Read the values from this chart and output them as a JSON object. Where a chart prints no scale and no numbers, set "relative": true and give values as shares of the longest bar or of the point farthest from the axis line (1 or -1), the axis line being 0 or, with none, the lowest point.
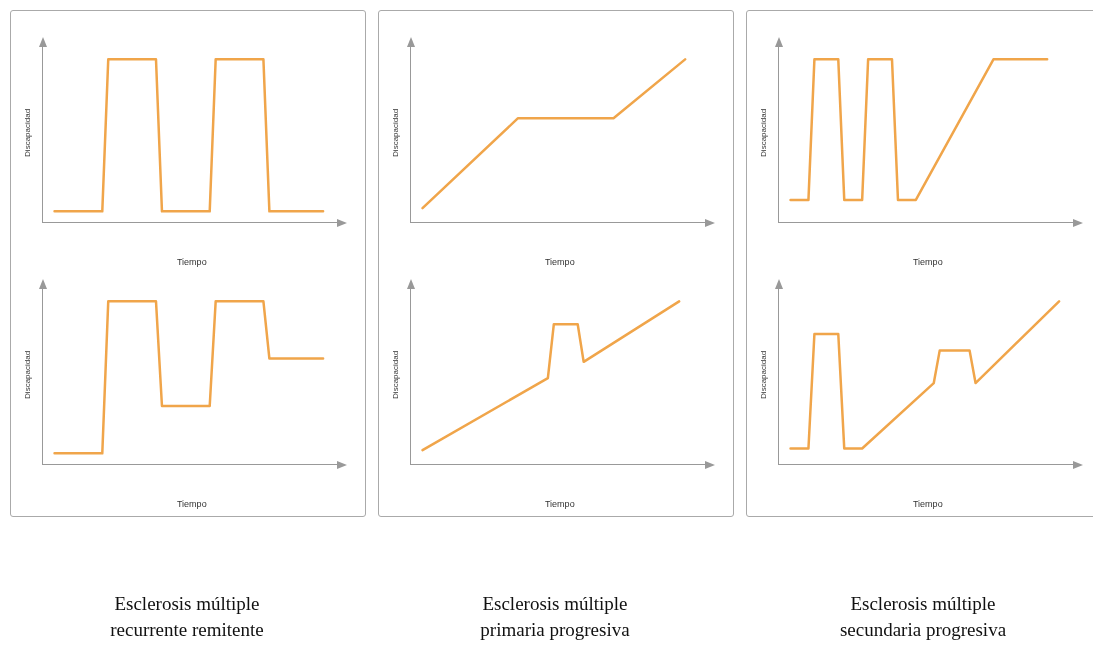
{
  "chart_data": [
    {
      "type": "line",
      "xlabel": "Tiempo",
      "ylabel": "Discapacidad",
      "relative": true,
      "grid": false,
      "legend": false,
      "marker": "none",
      "categories": [
        null,
        null,
        null,
        null,
        null,
        null,
        null,
        null,
        null,
        null,
        null,
        null,
        null,
        null,
        null,
        null,
        null,
        null,
        null,
        null,
        null,
        null,
        null,
        null,
        null,
        null,
        null,
        null,
        null,
        null,
        null,
        null,
        null,
        null,
        null,
        null,
        null,
        null,
        null,
        null,
        null,
        null,
        null,
        null,
        null,
        null,
        null,
        null,
        null,
        null,
        null
      ],
      "series": [
        {
          "color": "#f0a54a",
          "values": [
            null,
            null,
            0.07,
            null,
            null,
            null,
            null,
            null,
            null,
            null,
            0.07,
            1,
            null,
            null,
            null,
            null,
            null,
            null,
            null,
            1,
            0.07,
            null,
            null,
            null,
            null,
            null,
            null,
            null,
            0.07,
            1,
            null,
            null,
            null,
            null,
            null,
            null,
            null,
            1,
            0.07,
            null,
            null,
            null,
            null,
            null,
            null,
            null,
            null,
            0.07,
            null,
            null,
            null
          ]
        }
      ]
    },
    {
      "type": "line",
      "xlabel": "Tiempo",
      "ylabel": "Discapacidad",
      "relative": true,
      "grid": false,
      "legend": false,
      "marker": "none",
      "categories": [
        null,
        null,
        null,
        null,
        null,
        null,
        null,
        null,
        null,
        null,
        null,
        null,
        null,
        null,
        null,
        null,
        null,
        null,
        null,
        null,
        null,
        null,
        null,
        null,
        null,
        null,
        null,
        null,
        null,
        null,
        null,
        null,
        null,
        null,
        null,
        null,
        null,
        null,
        null,
        null,
        null,
        null,
        null,
        null,
        null,
        null,
        null,
        null,
        null,
        null,
        null
      ],
      "series": [
        {
          "color": "#f0a54a",
          "values": [
            null,
            null,
            0.09,
            null,
            null,
            null,
            null,
            null,
            null,
            null,
            null,
            null,
            null,
            null,
            null,
            null,
            null,
            null,
            0.64,
            null,
            null,
            null,
            null,
            null,
            null,
            null,
            null,
            null,
            null,
            null,
            null,
            null,
            null,
            null,
            0.64,
            null,
            null,
            null,
            null,
            null,
            null,
            null,
            null,
            null,
            null,
            null,
            1,
            null,
            null,
            null,
            null
          ]
        }
      ]
    },
    {
      "type": "line",
      "xlabel": "Tiempo",
      "ylabel": "Discapacidad",
      "relative": true,
      "grid": false,
      "legend": false,
      "marker": "none",
      "categories": [
        null,
        null,
        null,
        null,
        null,
        null,
        null,
        null,
        null,
        null,
        null,
        null,
        null,
        null,
        null,
        null,
        null,
        null,
        null,
        null,
        null,
        null,
        null,
        null,
        null,
        null,
        null,
        null,
        null,
        null,
        null,
        null,
        null,
        null,
        null,
        null,
        null,
        null,
        null,
        null,
        null,
        null,
        null,
        null,
        null,
        null,
        null,
        null,
        null,
        null,
        null
      ],
      "series": [
        {
          "color": "#f0a54a",
          "values": [
            null,
            null,
            0.14,
            null,
            null,
            0.14,
            1,
            null,
            null,
            null,
            1,
            0.14,
            null,
            null,
            0.14,
            1,
            null,
            null,
            null,
            1,
            0.14,
            null,
            null,
            0.14,
            null,
            null,
            null,
            null,
            null,
            null,
            null,
            null,
            null,
            null,
            null,
            null,
            1,
            null,
            null,
            null,
            null,
            null,
            null,
            null,
            null,
            1,
            null,
            null,
            null,
            null,
            null
          ]
        }
      ]
    },
    {
      "type": "line",
      "xlabel": "Tiempo",
      "ylabel": "Discapacidad",
      "relative": true,
      "grid": false,
      "legend": false,
      "marker": "none",
      "annotations": [
        "Esclerosis múltiple recurrente remitente"
      ],
      "categories": [
        null,
        null,
        null,
        null,
        null,
        null,
        null,
        null,
        null,
        null,
        null,
        null,
        null,
        null,
        null,
        null,
        null,
        null,
        null,
        null,
        null,
        null,
        null,
        null,
        null,
        null,
        null,
        null,
        null,
        null,
        null,
        null,
        null,
        null,
        null,
        null,
        null,
        null,
        null,
        null,
        null,
        null,
        null,
        null,
        null,
        null,
        null,
        null,
        null,
        null,
        null
      ],
      "series": [
        {
          "color": "#f0a54a",
          "values": [
            null,
            null,
            0.07,
            null,
            null,
            null,
            null,
            null,
            null,
            null,
            0.07,
            1,
            null,
            null,
            null,
            null,
            null,
            null,
            null,
            1,
            0.36,
            null,
            null,
            null,
            null,
            null,
            null,
            null,
            0.36,
            1,
            null,
            null,
            null,
            null,
            null,
            null,
            null,
            1,
            0.65,
            null,
            null,
            null,
            null,
            null,
            null,
            null,
            null,
            0.65,
            null,
            null,
            null
          ]
        }
      ]
    },
    {
      "type": "line",
      "xlabel": "Tiempo",
      "ylabel": "Discapacidad",
      "relative": true,
      "grid": false,
      "legend": false,
      "marker": "none",
      "annotations": [
        "Esclerosis múltiple primaria progresiva"
      ],
      "categories": [
        null,
        null,
        null,
        null,
        null,
        null,
        null,
        null,
        null,
        null,
        null,
        null,
        null,
        null,
        null,
        null,
        null,
        null,
        null,
        null,
        null,
        null,
        null,
        null,
        null,
        null,
        null,
        null,
        null,
        null,
        null,
        null,
        null,
        null,
        null,
        null,
        null,
        null,
        null,
        null,
        null,
        null,
        null,
        null,
        null,
        null,
        null,
        null,
        null,
        null,
        null
      ],
      "series": [
        {
          "color": "#f0a54a",
          "values": [
            null,
            null,
            0.09,
            null,
            null,
            null,
            null,
            null,
            null,
            null,
            null,
            null,
            null,
            null,
            null,
            null,
            null,
            null,
            null,
            null,
            null,
            null,
            null,
            0.53,
            0.86,
            null,
            null,
            null,
            0.86,
            0.63,
            null,
            null,
            null,
            null,
            null,
            null,
            null,
            null,
            null,
            null,
            null,
            null,
            null,
            null,
            null,
            1,
            null,
            null,
            null,
            null,
            null
          ]
        }
      ]
    },
    {
      "type": "line",
      "xlabel": "Tiempo",
      "ylabel": "Discapacidad",
      "relative": true,
      "grid": false,
      "legend": false,
      "marker": "none",
      "annotations": [
        "Esclerosis múltiple secundaria progresiva"
      ],
      "categories": [
        null,
        null,
        null,
        null,
        null,
        null,
        null,
        null,
        null,
        null,
        null,
        null,
        null,
        null,
        null,
        null,
        null,
        null,
        null,
        null,
        null,
        null,
        null,
        null,
        null,
        null,
        null,
        null,
        null,
        null,
        null,
        null,
        null,
        null,
        null,
        null,
        null,
        null,
        null,
        null,
        null,
        null,
        null,
        null,
        null,
        null,
        null,
        null,
        null,
        null,
        null
      ],
      "series": [
        {
          "color": "#f0a54a",
          "values": [
            null,
            null,
            0.1,
            null,
            null,
            0.1,
            0.8,
            null,
            null,
            null,
            0.8,
            0.1,
            null,
            null,
            0.1,
            null,
            null,
            null,
            null,
            null,
            null,
            null,
            null,
            null,
            null,
            null,
            0.5,
            0.7,
            null,
            null,
            null,
            null,
            0.7,
            0.5,
            null,
            null,
            null,
            null,
            null,
            null,
            null,
            null,
            null,
            null,
            null,
            null,
            null,
            1,
            null,
            null,
            null
          ]
        }
      ]
    }
  ]
}
